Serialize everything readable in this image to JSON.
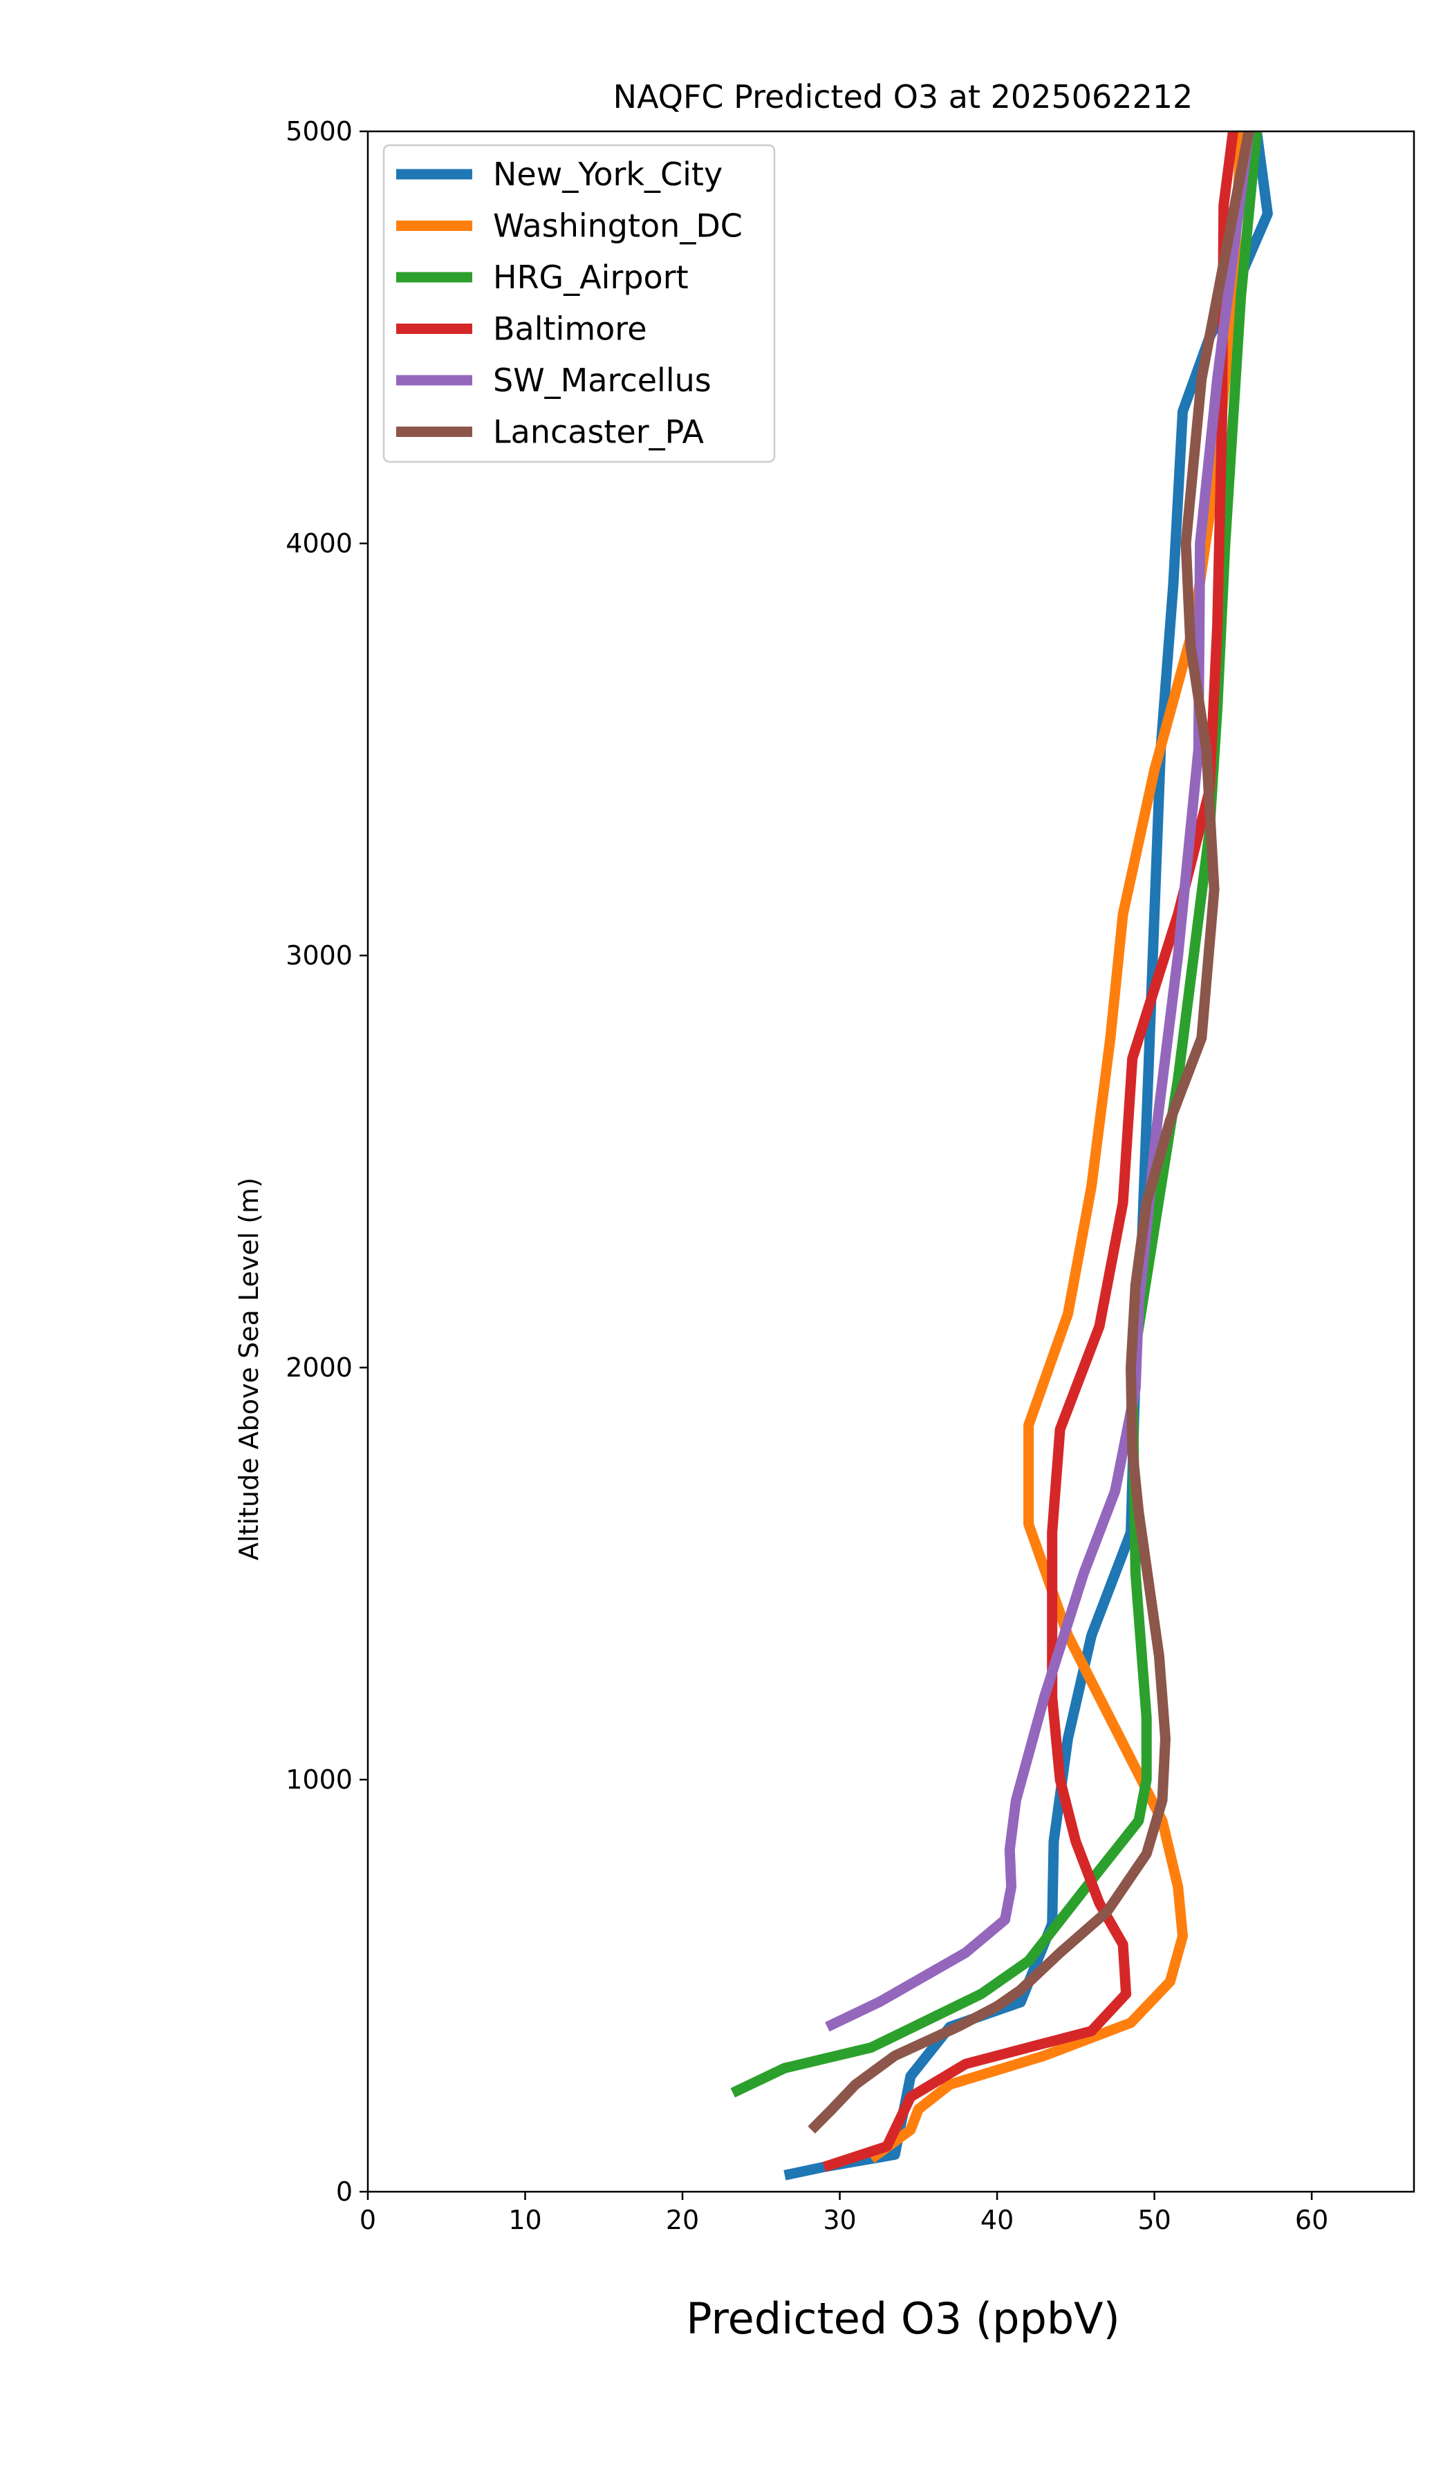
{
  "chart_data": {
    "type": "line",
    "title": "NAQFC Predicted O3 at 2025062212",
    "xlabel": "Predicted O3 (ppbV)",
    "ylabel": "Altitude Above Sea Level (m)",
    "xlim": [
      0,
      66.5
    ],
    "ylim": [
      0,
      5000
    ],
    "xticks": [
      0,
      10,
      20,
      30,
      40,
      50,
      60
    ],
    "yticks": [
      0,
      1000,
      2000,
      3000,
      4000,
      5000
    ],
    "grid": false,
    "legend_position": "top-left",
    "series": [
      {
        "name": "New_York_City",
        "color": "#1f77b4",
        "points": [
          [
            26.5,
            40
          ],
          [
            29,
            60
          ],
          [
            33.5,
            90
          ],
          [
            34.5,
            280
          ],
          [
            37,
            400
          ],
          [
            41.5,
            460
          ],
          [
            43.5,
            650
          ],
          [
            43.6,
            850
          ],
          [
            44.5,
            1100
          ],
          [
            46,
            1350
          ],
          [
            48.5,
            1600
          ],
          [
            48.8,
            2000
          ],
          [
            49.2,
            2300
          ],
          [
            49.6,
            2700
          ],
          [
            50.4,
            3500
          ],
          [
            51.2,
            3900
          ],
          [
            51.8,
            4320
          ],
          [
            53.5,
            4500
          ],
          [
            55.5,
            4650
          ],
          [
            57.2,
            4800
          ],
          [
            56.5,
            5000
          ]
        ]
      },
      {
        "name": "Washington_DC",
        "color": "#ff7f0e",
        "points": [
          [
            32,
            80
          ],
          [
            34.5,
            150
          ],
          [
            35,
            200
          ],
          [
            37,
            260
          ],
          [
            43,
            330
          ],
          [
            48.5,
            410
          ],
          [
            51,
            510
          ],
          [
            51.8,
            620
          ],
          [
            51.5,
            740
          ],
          [
            50.5,
            900
          ],
          [
            48.5,
            1050
          ],
          [
            46.5,
            1200
          ],
          [
            44.5,
            1350
          ],
          [
            42,
            1620
          ],
          [
            42,
            1860
          ],
          [
            44.5,
            2130
          ],
          [
            46,
            2440
          ],
          [
            47.2,
            2800
          ],
          [
            48,
            3100
          ],
          [
            50,
            3450
          ],
          [
            52.5,
            3800
          ],
          [
            54,
            4200
          ],
          [
            55,
            4600
          ],
          [
            55.5,
            5000
          ]
        ]
      },
      {
        "name": "HRG_Airport",
        "color": "#2ca02c",
        "points": [
          [
            23.2,
            240
          ],
          [
            26.5,
            300
          ],
          [
            32,
            350
          ],
          [
            39,
            480
          ],
          [
            42,
            560
          ],
          [
            46.5,
            780
          ],
          [
            49,
            900
          ],
          [
            49.5,
            1000
          ],
          [
            49.5,
            1150
          ],
          [
            48.8,
            1500
          ],
          [
            48.6,
            2000
          ],
          [
            51.5,
            2700
          ],
          [
            53.5,
            3300
          ],
          [
            54,
            3600
          ],
          [
            54.5,
            4000
          ],
          [
            55.5,
            4600
          ],
          [
            56.5,
            5000
          ]
        ]
      },
      {
        "name": "Baltimore",
        "color": "#d62728",
        "points": [
          [
            29,
            60
          ],
          [
            33,
            110
          ],
          [
            34.5,
            230
          ],
          [
            38,
            310
          ],
          [
            43,
            360
          ],
          [
            46,
            390
          ],
          [
            48.2,
            480
          ],
          [
            48,
            600
          ],
          [
            46.5,
            700
          ],
          [
            45,
            850
          ],
          [
            44,
            1000
          ],
          [
            43.5,
            1200
          ],
          [
            43.5,
            1600
          ],
          [
            44,
            1850
          ],
          [
            46.5,
            2100
          ],
          [
            48,
            2400
          ],
          [
            48.6,
            2750
          ],
          [
            51.5,
            3100
          ],
          [
            53.5,
            3400
          ],
          [
            54,
            3800
          ],
          [
            54.3,
            4300
          ],
          [
            54.4,
            4820
          ],
          [
            55,
            5000
          ]
        ]
      },
      {
        "name": "SW_Marcellus",
        "color": "#9467bd",
        "points": [
          [
            29.2,
            400
          ],
          [
            32.5,
            460
          ],
          [
            38,
            580
          ],
          [
            40.5,
            660
          ],
          [
            40.9,
            740
          ],
          [
            40.8,
            830
          ],
          [
            41.2,
            950
          ],
          [
            43,
            1200
          ],
          [
            45.5,
            1500
          ],
          [
            47.5,
            1700
          ],
          [
            48.8,
            1950
          ],
          [
            49,
            2150
          ],
          [
            50.2,
            2600
          ],
          [
            51.5,
            3000
          ],
          [
            52.8,
            3500
          ],
          [
            52.9,
            4000
          ],
          [
            54,
            4400
          ],
          [
            55,
            4700
          ],
          [
            56,
            5000
          ]
        ]
      },
      {
        "name": "Lancaster_PA",
        "color": "#8c564b",
        "points": [
          [
            28.2,
            150
          ],
          [
            29.5,
            200
          ],
          [
            31,
            260
          ],
          [
            33.5,
            330
          ],
          [
            37.5,
            400
          ],
          [
            40,
            450
          ],
          [
            41.5,
            490
          ],
          [
            44,
            580
          ],
          [
            47,
            680
          ],
          [
            49.5,
            820
          ],
          [
            50.5,
            950
          ],
          [
            50.7,
            1100
          ],
          [
            50.3,
            1300
          ],
          [
            49,
            1650
          ],
          [
            48.6,
            1800
          ],
          [
            48.5,
            2000
          ],
          [
            48.8,
            2200
          ],
          [
            49.5,
            2400
          ],
          [
            51,
            2600
          ],
          [
            53,
            2800
          ],
          [
            53.8,
            3160
          ],
          [
            53.3,
            3500
          ],
          [
            52.3,
            3750
          ],
          [
            52,
            4000
          ],
          [
            53,
            4400
          ],
          [
            55,
            4800
          ],
          [
            56,
            5000
          ]
        ]
      }
    ]
  }
}
